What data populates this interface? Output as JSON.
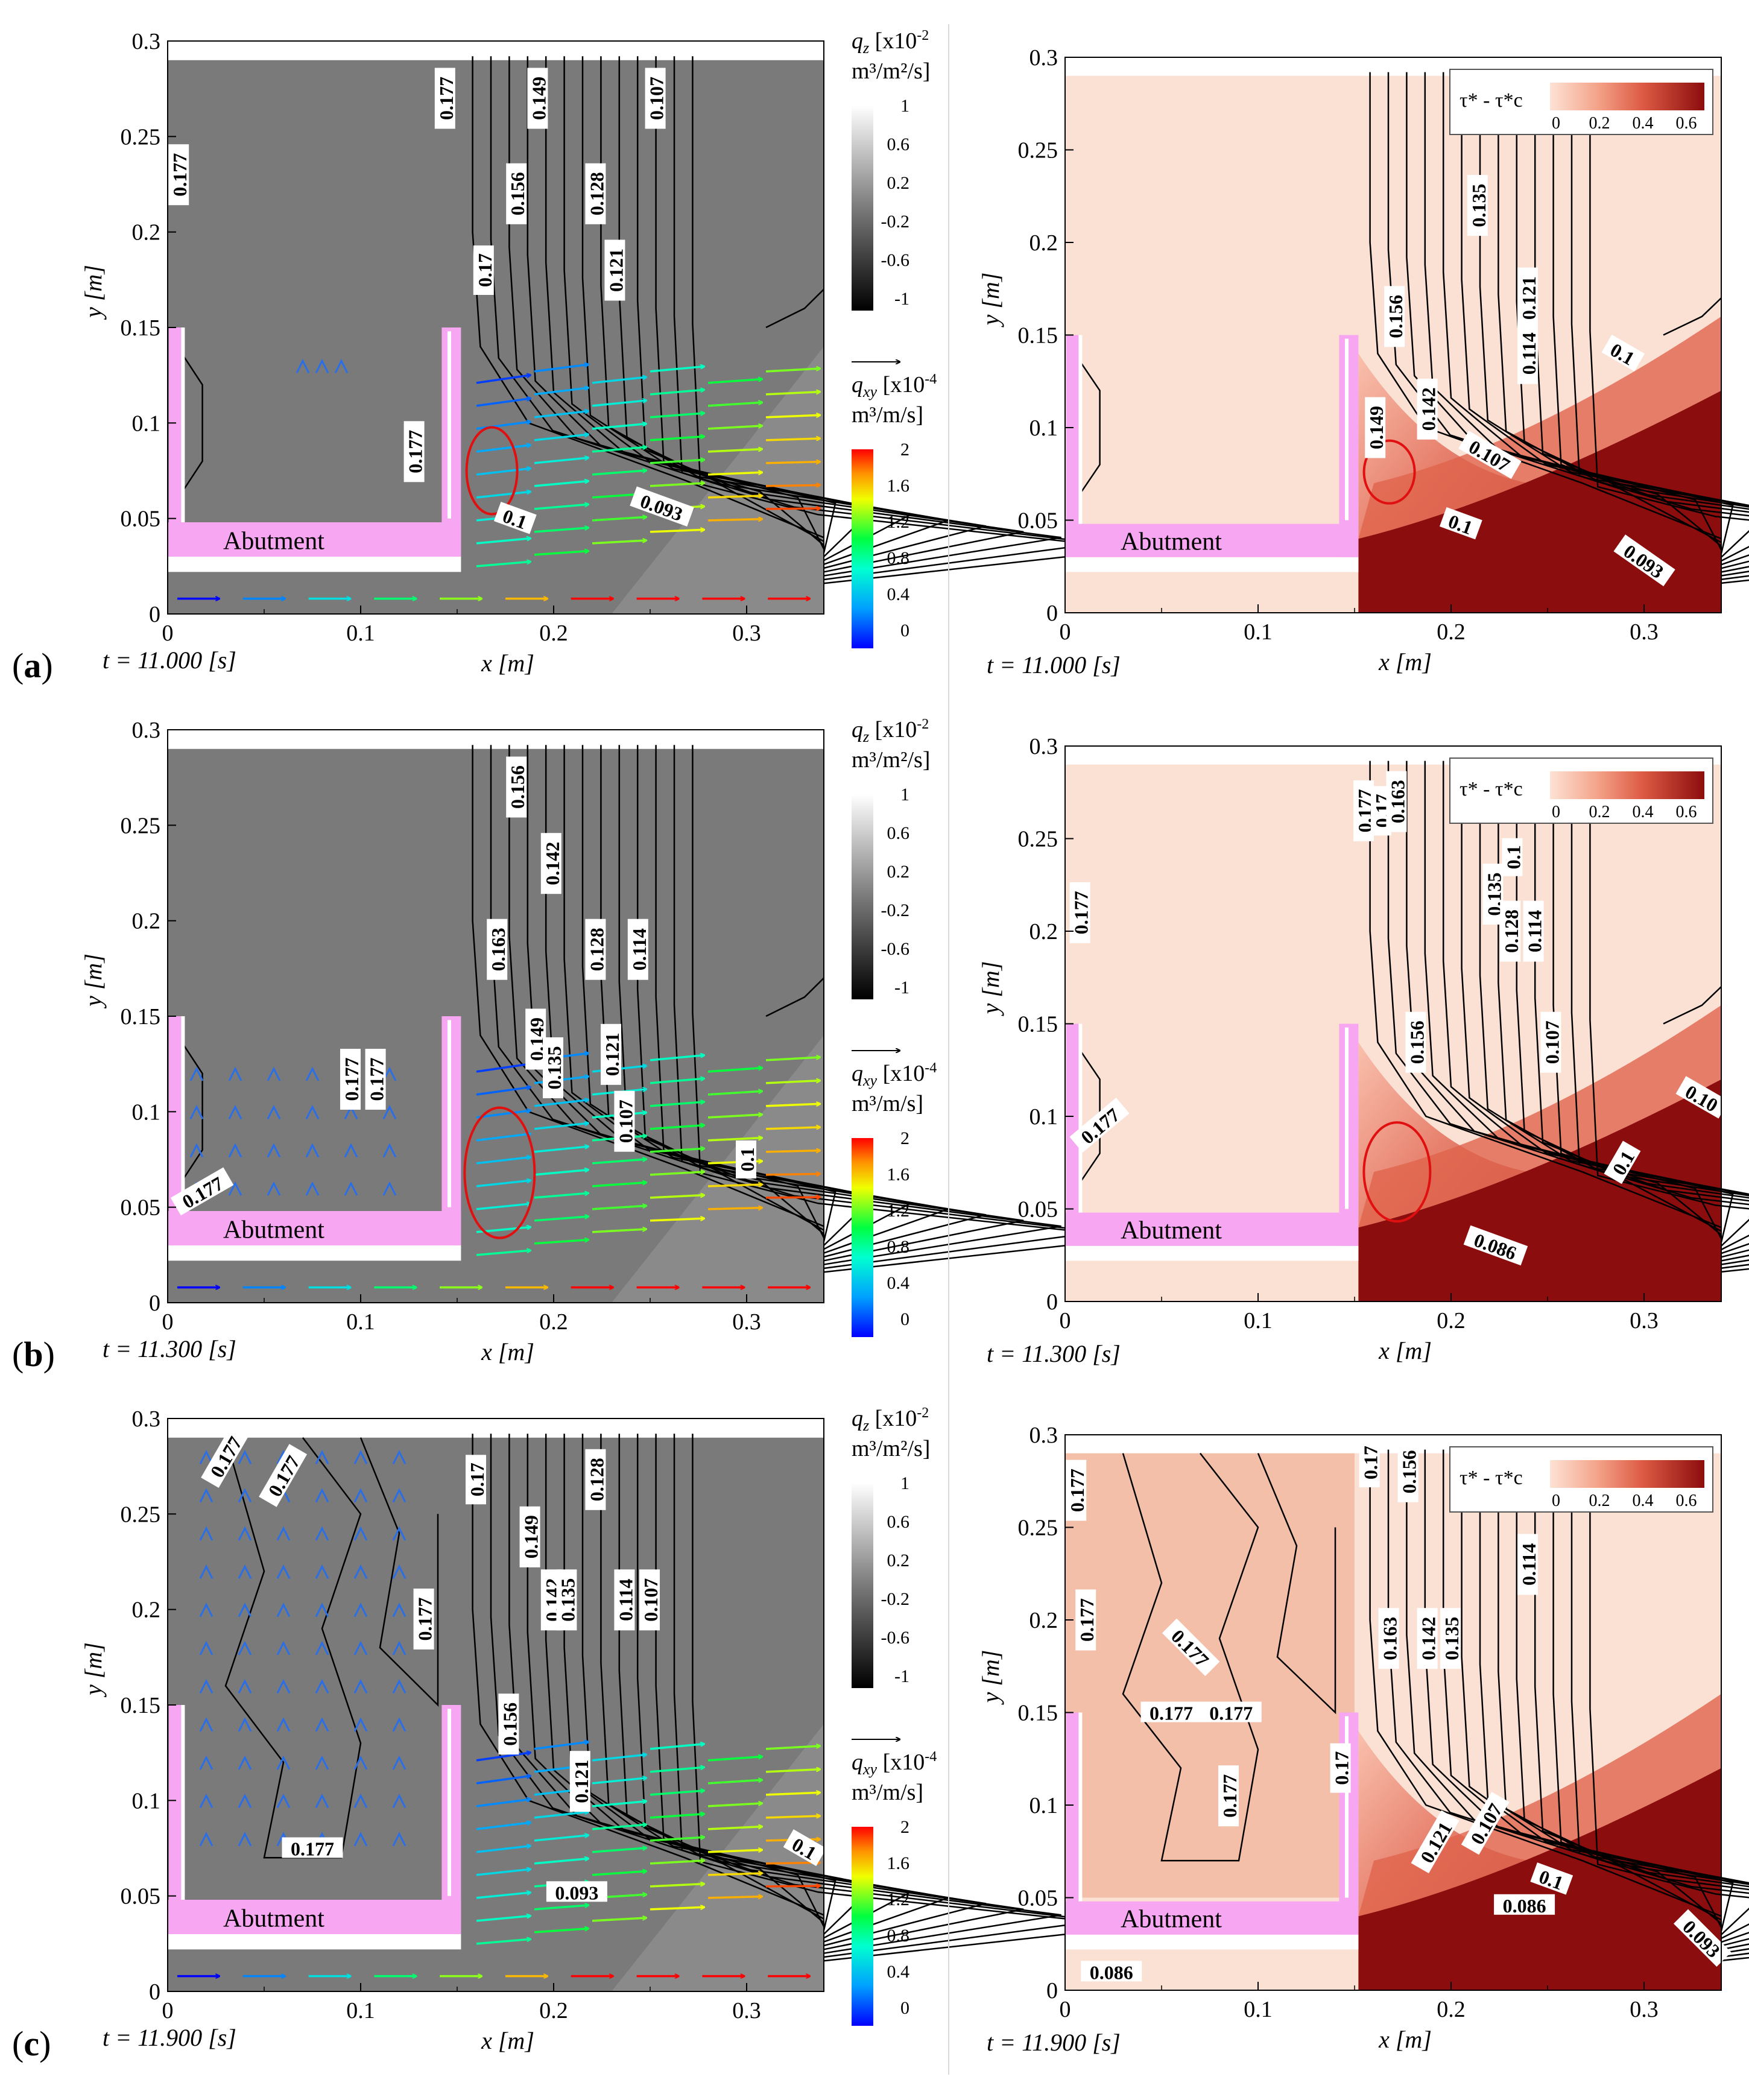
{
  "figure": {
    "rows": [
      {
        "label": "a",
        "time_label": "t = 11.000 [s]"
      },
      {
        "label": "b",
        "time_label": "t = 11.300 [s]"
      },
      {
        "label": "c",
        "time_label": "t = 11.900 [s]"
      }
    ],
    "abutment_label": "Abutment",
    "left_legends": {
      "qz_label": "q",
      "qz_sub": "z",
      "qz_unit1": "[x10",
      "qz_exp": "-2",
      "qz_unit2": "m³/m²/s]",
      "qz_ticks": [
        "1",
        "0.6",
        "0.2",
        "-0.2",
        "-0.6",
        "-1"
      ],
      "qxy_label": "q",
      "qxy_sub": "xy",
      "qxy_unit1": "[x10",
      "qxy_exp": "-4",
      "qxy_unit2": "m³/m/s]",
      "qxy_ticks": [
        "2",
        "1.6",
        "1.2",
        "0.8",
        "0.4",
        "0"
      ]
    },
    "right_legend": {
      "label": "τ* - τ*c",
      "ticks": [
        "0",
        "0.2",
        "0.4",
        "0.6"
      ]
    },
    "colors": {
      "gray_field": "#7a7a7a",
      "abutment": "#f7a6f2",
      "shear_light": "#f7d6c8",
      "shear_dark": "#8b0d0d",
      "circle": "#e01010"
    }
  },
  "chart_data": [
    {
      "panel": "a-left",
      "type": "contour-vector",
      "xlabel": "x [m]",
      "ylabel": "y [m]",
      "xlim": [
        0,
        0.34
      ],
      "ylim": [
        0,
        0.3
      ],
      "xticks": [
        "0",
        "0.1",
        "0.2",
        "0.3"
      ],
      "yticks": [
        "0",
        "0.05",
        "0.1",
        "0.15",
        "0.2",
        "0.25",
        "0.3"
      ],
      "contour_labels": [
        {
          "text": "0.177",
          "x": 0.006,
          "y": 0.23,
          "rot": 90
        },
        {
          "text": "0.177",
          "x": 0.144,
          "y": 0.27,
          "rot": 90
        },
        {
          "text": "0.149",
          "x": 0.192,
          "y": 0.27,
          "rot": 90
        },
        {
          "text": "0.107",
          "x": 0.253,
          "y": 0.27,
          "rot": 90
        },
        {
          "text": "0.156",
          "x": 0.181,
          "y": 0.22,
          "rot": 90
        },
        {
          "text": "0.128",
          "x": 0.222,
          "y": 0.22,
          "rot": 90
        },
        {
          "text": "0.17",
          "x": 0.164,
          "y": 0.18,
          "rot": 90
        },
        {
          "text": "0.121",
          "x": 0.232,
          "y": 0.18,
          "rot": 90
        },
        {
          "text": "0.177",
          "x": 0.128,
          "y": 0.085,
          "rot": 90
        },
        {
          "text": "0.1",
          "x": 0.18,
          "y": 0.05,
          "rot": -20
        },
        {
          "text": "0.093",
          "x": 0.256,
          "y": 0.056,
          "rot": -20
        }
      ]
    },
    {
      "panel": "a-right",
      "type": "contour-filled",
      "xlabel": "x [m]",
      "ylabel": "y [m]",
      "xlim": [
        0,
        0.34
      ],
      "ylim": [
        0,
        0.3
      ],
      "xticks": [
        "0",
        "0.1",
        "0.2",
        "0.3"
      ],
      "yticks": [
        "0",
        "0.05",
        "0.1",
        "0.15",
        "0.2",
        "0.25",
        "0.3"
      ],
      "contour_labels": [
        {
          "text": "0.135",
          "x": 0.214,
          "y": 0.22,
          "rot": 90
        },
        {
          "text": "0.156",
          "x": 0.171,
          "y": 0.16,
          "rot": 90
        },
        {
          "text": "0.121",
          "x": 0.24,
          "y": 0.17,
          "rot": 90
        },
        {
          "text": "0.114",
          "x": 0.24,
          "y": 0.14,
          "rot": 90
        },
        {
          "text": "0.142",
          "x": 0.188,
          "y": 0.11,
          "rot": 90
        },
        {
          "text": "0.149",
          "x": 0.161,
          "y": 0.1,
          "rot": 90
        },
        {
          "text": "0.107",
          "x": 0.22,
          "y": 0.085,
          "rot": -30
        },
        {
          "text": "0.1",
          "x": 0.289,
          "y": 0.14,
          "rot": -30
        },
        {
          "text": "0.1",
          "x": 0.205,
          "y": 0.048,
          "rot": -20
        },
        {
          "text": "0.093",
          "x": 0.3,
          "y": 0.028,
          "rot": -35
        }
      ]
    },
    {
      "panel": "b-left",
      "type": "contour-vector",
      "xlabel": "x [m]",
      "ylabel": "y [m]",
      "xlim": [
        0,
        0.34
      ],
      "ylim": [
        0,
        0.3
      ],
      "xticks": [
        "0",
        "0.1",
        "0.2",
        "0.3"
      ],
      "yticks": [
        "0",
        "0.05",
        "0.1",
        "0.15",
        "0.2",
        "0.25",
        "0.3"
      ],
      "contour_labels": [
        {
          "text": "0.156",
          "x": 0.181,
          "y": 0.27,
          "rot": 90
        },
        {
          "text": "0.142",
          "x": 0.199,
          "y": 0.23,
          "rot": 90
        },
        {
          "text": "0.163",
          "x": 0.171,
          "y": 0.185,
          "rot": 90
        },
        {
          "text": "0.128",
          "x": 0.222,
          "y": 0.185,
          "rot": 90
        },
        {
          "text": "0.114",
          "x": 0.244,
          "y": 0.185,
          "rot": 90
        },
        {
          "text": "0.177",
          "x": 0.095,
          "y": 0.117,
          "rot": 90
        },
        {
          "text": "0.177",
          "x": 0.108,
          "y": 0.117,
          "rot": 90
        },
        {
          "text": "0.149",
          "x": 0.191,
          "y": 0.138,
          "rot": 90
        },
        {
          "text": "0.135",
          "x": 0.2,
          "y": 0.123,
          "rot": 90
        },
        {
          "text": "0.121",
          "x": 0.23,
          "y": 0.13,
          "rot": 90
        },
        {
          "text": "0.107",
          "x": 0.237,
          "y": 0.095,
          "rot": 90
        },
        {
          "text": "0.1",
          "x": 0.3,
          "y": 0.075,
          "rot": 90
        },
        {
          "text": "0.177",
          "x": 0.018,
          "y": 0.058,
          "rot": 30
        }
      ]
    },
    {
      "panel": "b-right",
      "type": "contour-filled",
      "xlabel": "x [m]",
      "ylabel": "y [m]",
      "xlim": [
        0,
        0.34
      ],
      "ylim": [
        0,
        0.3
      ],
      "xticks": [
        "0",
        "0.1",
        "0.2",
        "0.3"
      ],
      "yticks": [
        "0",
        "0.05",
        "0.1",
        "0.15",
        "0.2",
        "0.25",
        "0.3"
      ],
      "contour_labels": [
        {
          "text": "0.177",
          "x": 0.155,
          "y": 0.265,
          "rot": 90
        },
        {
          "text": "0.17",
          "x": 0.164,
          "y": 0.265,
          "rot": 90
        },
        {
          "text": "0.163",
          "x": 0.172,
          "y": 0.27,
          "rot": 90
        },
        {
          "text": "0.177",
          "x": 0.008,
          "y": 0.21,
          "rot": 90
        },
        {
          "text": "0.135",
          "x": 0.222,
          "y": 0.22,
          "rot": 90
        },
        {
          "text": "0.128",
          "x": 0.231,
          "y": 0.2,
          "rot": 90
        },
        {
          "text": "0.1",
          "x": 0.232,
          "y": 0.24,
          "rot": 90
        },
        {
          "text": "0.114",
          "x": 0.243,
          "y": 0.2,
          "rot": 90
        },
        {
          "text": "0.156",
          "x": 0.182,
          "y": 0.14,
          "rot": 90
        },
        {
          "text": "0.107",
          "x": 0.252,
          "y": 0.14,
          "rot": 90
        },
        {
          "text": "0.10",
          "x": 0.33,
          "y": 0.11,
          "rot": -30
        },
        {
          "text": "0.1",
          "x": 0.289,
          "y": 0.075,
          "rot": 60
        },
        {
          "text": "0.177",
          "x": 0.018,
          "y": 0.095,
          "rot": 40
        },
        {
          "text": "0.086",
          "x": 0.223,
          "y": 0.03,
          "rot": -20
        }
      ]
    },
    {
      "panel": "c-left",
      "type": "contour-vector",
      "xlabel": "x [m]",
      "ylabel": "y [m]",
      "xlim": [
        0,
        0.34
      ],
      "ylim": [
        0,
        0.3
      ],
      "xticks": [
        "0",
        "0.1",
        "0.2",
        "0.3"
      ],
      "yticks": [
        "0",
        "0.05",
        "0.1",
        "0.15",
        "0.2",
        "0.25",
        "0.3"
      ],
      "contour_labels": [
        {
          "text": "0.177",
          "x": 0.03,
          "y": 0.28,
          "rot": 60
        },
        {
          "text": "0.177",
          "x": 0.06,
          "y": 0.27,
          "rot": 60
        },
        {
          "text": "0.17",
          "x": 0.16,
          "y": 0.268,
          "rot": 90
        },
        {
          "text": "0.128",
          "x": 0.222,
          "y": 0.268,
          "rot": 90
        },
        {
          "text": "0.149",
          "x": 0.188,
          "y": 0.238,
          "rot": 90
        },
        {
          "text": "0.142",
          "x": 0.199,
          "y": 0.205,
          "rot": 90
        },
        {
          "text": "0.135",
          "x": 0.207,
          "y": 0.205,
          "rot": 90
        },
        {
          "text": "0.114",
          "x": 0.237,
          "y": 0.205,
          "rot": 90
        },
        {
          "text": "0.107",
          "x": 0.25,
          "y": 0.205,
          "rot": 90
        },
        {
          "text": "0.177",
          "x": 0.133,
          "y": 0.195,
          "rot": 90
        },
        {
          "text": "0.156",
          "x": 0.177,
          "y": 0.14,
          "rot": 90
        },
        {
          "text": "0.121",
          "x": 0.214,
          "y": 0.11,
          "rot": 90
        },
        {
          "text": "0.177",
          "x": 0.075,
          "y": 0.075,
          "rot": 0
        },
        {
          "text": "0.093",
          "x": 0.212,
          "y": 0.052,
          "rot": 0
        },
        {
          "text": "0.1",
          "x": 0.33,
          "y": 0.075,
          "rot": -30
        }
      ]
    },
    {
      "panel": "c-right",
      "type": "contour-filled",
      "xlabel": "x [m]",
      "ylabel": "y [m]",
      "xlim": [
        0,
        0.34
      ],
      "ylim": [
        0,
        0.3
      ],
      "xticks": [
        "0",
        "0.1",
        "0.2",
        "0.3"
      ],
      "yticks": [
        "0",
        "0.05",
        "0.1",
        "0.15",
        "0.2",
        "0.25",
        "0.3"
      ],
      "contour_labels": [
        {
          "text": "0.177",
          "x": 0.006,
          "y": 0.27,
          "rot": 90
        },
        {
          "text": "0.17",
          "x": 0.158,
          "y": 0.285,
          "rot": 90
        },
        {
          "text": "0.156",
          "x": 0.178,
          "y": 0.28,
          "rot": 90
        },
        {
          "text": "0.114",
          "x": 0.24,
          "y": 0.23,
          "rot": 90
        },
        {
          "text": "0.163",
          "x": 0.168,
          "y": 0.19,
          "rot": 90
        },
        {
          "text": "0.142",
          "x": 0.188,
          "y": 0.19,
          "rot": 90
        },
        {
          "text": "0.135",
          "x": 0.2,
          "y": 0.19,
          "rot": 90
        },
        {
          "text": "0.177",
          "x": 0.011,
          "y": 0.2,
          "rot": 90
        },
        {
          "text": "0.177",
          "x": 0.055,
          "y": 0.15,
          "rot": 0
        },
        {
          "text": "0.177",
          "x": 0.086,
          "y": 0.15,
          "rot": 0
        },
        {
          "text": "0.177",
          "x": 0.065,
          "y": 0.185,
          "rot": -45
        },
        {
          "text": "0.177",
          "x": 0.085,
          "y": 0.105,
          "rot": 90
        },
        {
          "text": "0.17",
          "x": 0.143,
          "y": 0.12,
          "rot": 90
        },
        {
          "text": "0.121",
          "x": 0.192,
          "y": 0.08,
          "rot": 60
        },
        {
          "text": "0.107",
          "x": 0.218,
          "y": 0.09,
          "rot": 60
        },
        {
          "text": "0.1",
          "x": 0.252,
          "y": 0.06,
          "rot": -20
        },
        {
          "text": "0.086",
          "x": 0.238,
          "y": 0.046,
          "rot": 0
        },
        {
          "text": "0.093",
          "x": 0.33,
          "y": 0.028,
          "rot": -45
        },
        {
          "text": "0.086",
          "x": 0.024,
          "y": 0.01,
          "rot": 0
        }
      ]
    }
  ]
}
